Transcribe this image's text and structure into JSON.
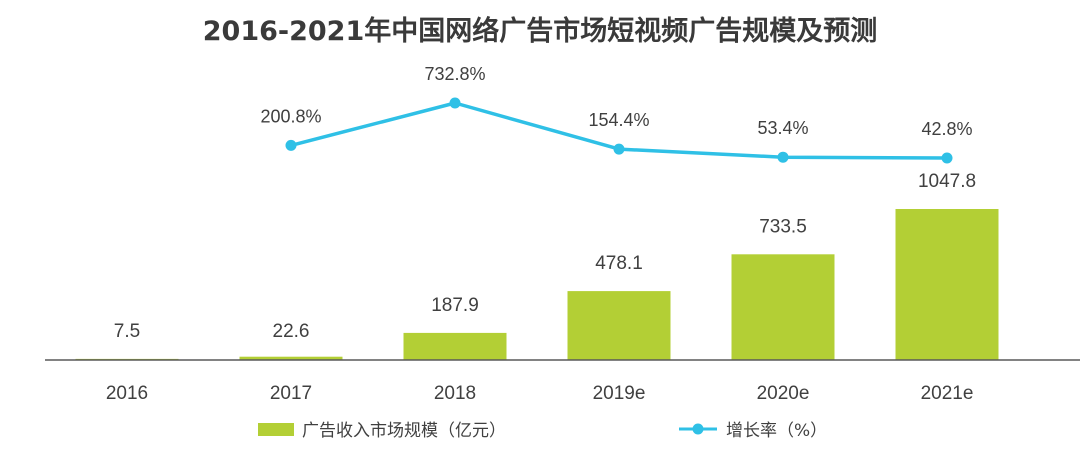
{
  "chart_data": {
    "type": "bar",
    "title": "2016-2021年中国网络广告市场短视频广告规模及预测",
    "categories": [
      "2016",
      "2017",
      "2018",
      "2019e",
      "2020e",
      "2021e"
    ],
    "series": [
      {
        "name": "广告收入市场规模（亿元）",
        "type": "bar",
        "values": [
          7.5,
          22.6,
          187.9,
          478.1,
          733.5,
          1047.8
        ],
        "labels": [
          "7.5",
          "22.6",
          "187.9",
          "478.1",
          "733.5",
          "1047.8"
        ]
      },
      {
        "name": "增长率（%）",
        "type": "line",
        "values": [
          null,
          200.8,
          732.8,
          154.4,
          53.4,
          42.8
        ],
        "labels": [
          "",
          "200.8%",
          "732.8%",
          "154.4%",
          "53.4%",
          "42.8%"
        ]
      }
    ],
    "bar_ylim": [
      0,
      1047.8
    ],
    "line_ylim": [
      0,
      732.8
    ],
    "grid": false,
    "legend_position": "bottom",
    "colors": {
      "bar": "#b3cf35",
      "line": "#2fc0e6",
      "text": "#404040",
      "axis": "#595959",
      "title": "#3a3a3a"
    }
  }
}
